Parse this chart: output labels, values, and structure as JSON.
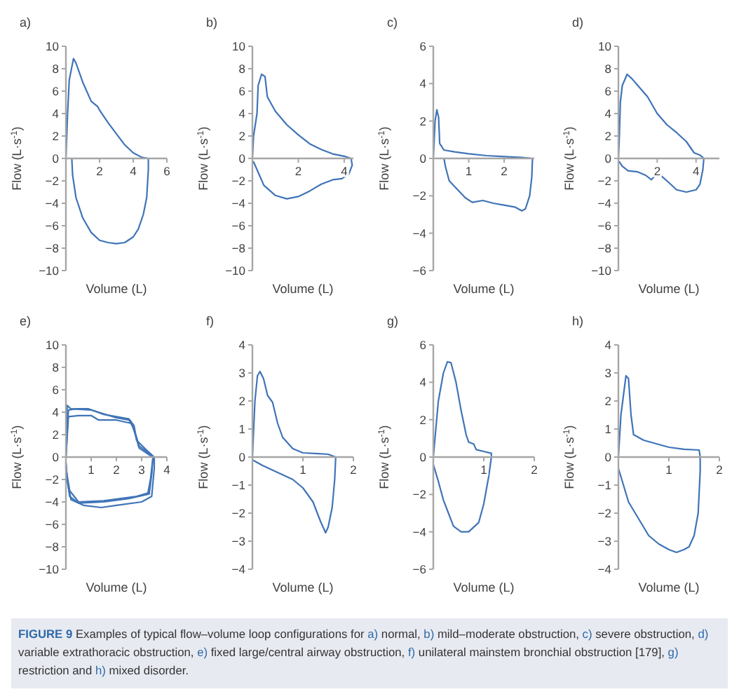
{
  "chart_data": [
    {
      "type": "line",
      "title": "a)",
      "xlabel": "Volume (L)",
      "ylabel": "Flow (L·s$^{-1}$)",
      "xlim": [
        0,
        6
      ],
      "ylim": [
        -10,
        10
      ],
      "xticks": [
        2,
        4,
        6
      ],
      "yticks": [
        {
          "value": -10,
          "label": "−10"
        },
        {
          "value": -8,
          "label": "−8"
        },
        {
          "value": -6,
          "label": "−6"
        },
        {
          "value": -4,
          "label": "−4"
        },
        {
          "value": -2,
          "label": "−2"
        },
        0,
        2,
        4,
        6,
        8,
        10
      ],
      "series": [
        {
          "color": "#3f74b8",
          "x": [
            0,
            0.1,
            0.2,
            0.45,
            0.6,
            1,
            1.5,
            1.9,
            2,
            2.5,
            3,
            3.5,
            4,
            4.5,
            4.9,
            4.9,
            4.8,
            4.6,
            4.3,
            4,
            3.5,
            3,
            2.5,
            2,
            1.5,
            1,
            0.6,
            0.4,
            0.35
          ],
          "values": [
            0,
            4,
            7,
            8.9,
            8.5,
            6.8,
            5.1,
            4.6,
            4.3,
            3.2,
            2.2,
            1.2,
            0.5,
            0.1,
            0,
            -1,
            -3.5,
            -5,
            -6.3,
            -7,
            -7.5,
            -7.6,
            -7.5,
            -7.3,
            -6.6,
            -5.3,
            -3.5,
            -1.5,
            0
          ]
        }
      ]
    },
    {
      "type": "line",
      "title": "b)",
      "xlabel": "Volume (L)",
      "ylabel": "Flow (L·s$^{-1}$)",
      "xlim": [
        0,
        4.4
      ],
      "ylim": [
        -10,
        10
      ],
      "xticks": [
        2,
        4
      ],
      "yticks": [
        {
          "value": -10,
          "label": "−10"
        },
        {
          "value": -8,
          "label": "−8"
        },
        {
          "value": -6,
          "label": "−6"
        },
        {
          "value": -4,
          "label": "−4"
        },
        {
          "value": -2,
          "label": "−2"
        },
        0,
        2,
        4,
        6,
        8,
        10
      ],
      "series": [
        {
          "color": "#3f74b8",
          "x": [
            0,
            0.05,
            0.2,
            0.25,
            0.4,
            0.55,
            0.65,
            1,
            1.5,
            2,
            2.5,
            3,
            3.5,
            4,
            4.3,
            4.35,
            4.2,
            3.9,
            3.5,
            3,
            2.5,
            2,
            1.5,
            1,
            0.5,
            0.2,
            0.05
          ],
          "values": [
            0,
            2,
            4,
            6.5,
            7.5,
            7.3,
            5.5,
            4.2,
            3,
            2.1,
            1.3,
            0.8,
            0.4,
            0.2,
            0,
            -0.6,
            -1.4,
            -1.8,
            -1.9,
            -2.3,
            -2.9,
            -3.4,
            -3.6,
            -3.3,
            -2.4,
            -1,
            -0.3
          ]
        }
      ]
    },
    {
      "type": "line",
      "title": "c)",
      "xlabel": "Volume (L)",
      "ylabel": "Flow (L·s$^{-1}$)",
      "xlim": [
        0,
        2.85
      ],
      "ylim": [
        -6,
        6
      ],
      "xticks": [
        1,
        2
      ],
      "yticks": [
        {
          "value": -6,
          "label": "−6"
        },
        {
          "value": -4,
          "label": "−4"
        },
        {
          "value": -2,
          "label": "−2"
        },
        0,
        2,
        4,
        6
      ],
      "series": [
        {
          "color": "#3f74b8",
          "x": [
            0,
            0.05,
            0.1,
            0.15,
            0.18,
            0.3,
            0.6,
            1,
            1.5,
            2,
            2.5,
            2.8,
            2.78,
            2.72,
            2.6,
            2.5,
            2.3,
            2,
            1.7,
            1.4,
            1.1,
            0.9,
            0.6,
            0.45,
            0.35,
            0.3
          ],
          "values": [
            0,
            2,
            2.6,
            2.2,
            0.8,
            0.45,
            0.35,
            0.25,
            0.15,
            0.1,
            0.05,
            0,
            -1,
            -2,
            -2.7,
            -2.8,
            -2.6,
            -2.5,
            -2.4,
            -2.25,
            -2.35,
            -2.1,
            -1.5,
            -1.2,
            -0.5,
            0
          ]
        }
      ]
    },
    {
      "type": "line",
      "title": "d)",
      "xlabel": "Volume (L)",
      "ylabel": "Flow (L·s$^{-1}$)",
      "xlim": [
        0,
        5.2
      ],
      "ylim": [
        -10,
        10
      ],
      "xticks": [
        2,
        4
      ],
      "yticks": [
        {
          "value": -10,
          "label": "−10"
        },
        {
          "value": -8,
          "label": "−8"
        },
        {
          "value": -6,
          "label": "−6"
        },
        {
          "value": -4,
          "label": "−4"
        },
        {
          "value": -2,
          "label": "−2"
        },
        0,
        2,
        4,
        6,
        8,
        10
      ],
      "series": [
        {
          "color": "#3f74b8",
          "x": [
            0,
            0.05,
            0.1,
            0.2,
            0.45,
            0.7,
            1,
            1.5,
            2,
            2.5,
            3,
            3.5,
            3.9,
            4.2,
            4.4,
            4.35,
            4.2,
            4,
            3.5,
            3,
            2.5,
            2.1,
            2,
            1.85,
            1.7,
            1.4,
            1,
            0.5,
            0.2,
            0.05
          ],
          "values": [
            0,
            2,
            5,
            6.5,
            7.5,
            7.1,
            6.5,
            5.5,
            4,
            3,
            2.3,
            1.5,
            0.5,
            0.3,
            0,
            -1,
            -2.3,
            -2.8,
            -3,
            -2.8,
            -2,
            -1.4,
            -1.2,
            -1.6,
            -1.9,
            -1.5,
            -1.2,
            -1.1,
            -0.7,
            -0.3
          ]
        }
      ]
    },
    {
      "type": "line",
      "title": "e)",
      "xlabel": "Volume (L)",
      "ylabel": "Flow (L·s$^{-1}$)",
      "xlim": [
        0,
        4
      ],
      "ylim": [
        -10,
        10
      ],
      "xticks": [
        1,
        2,
        3,
        4
      ],
      "yticks": [
        {
          "value": -10,
          "label": "−10"
        },
        {
          "value": -8,
          "label": "−8"
        },
        {
          "value": -6,
          "label": "−6"
        },
        {
          "value": -4,
          "label": "−4"
        },
        {
          "value": -2,
          "label": "−2"
        },
        0,
        2,
        4,
        6,
        8,
        10
      ],
      "series": [
        {
          "color": "#3f74b8",
          "x": [
            0,
            0.05,
            0.2,
            1,
            2,
            2.5,
            2.7,
            2.9,
            3.3,
            3.45,
            3.4,
            3.3,
            2.5,
            1.5,
            0.5,
            0.15,
            0.05,
            0
          ],
          "values": [
            0,
            4.6,
            4.3,
            4.2,
            3.5,
            3.3,
            2.5,
            1,
            0.3,
            0,
            -1.5,
            -3.3,
            -3.7,
            -4,
            -4.1,
            -3.5,
            -2,
            -0.5
          ]
        },
        {
          "color": "#3f74b8",
          "x": [
            0,
            0.1,
            0.4,
            0.9,
            1.5,
            2.5,
            2.7,
            2.8,
            3.2,
            3.5,
            3.5,
            3.4,
            3,
            2,
            1.4,
            0.7,
            0.2,
            0.05,
            0
          ],
          "values": [
            0,
            4.2,
            4.3,
            4.3,
            3.8,
            3.4,
            2.8,
            1.5,
            0.6,
            0,
            -1,
            -3.5,
            -4,
            -4.3,
            -4.5,
            -4.3,
            -3.8,
            -2,
            -0.5
          ]
        },
        {
          "color": "#3f74b8",
          "x": [
            0,
            0.1,
            0.5,
            1,
            1.3,
            2,
            2.6,
            2.75,
            2.9,
            3.3,
            3.45,
            3.35,
            3.25,
            2.8,
            1.5,
            0.5,
            0.15,
            0,
            0
          ],
          "values": [
            0,
            3.6,
            3.7,
            3.7,
            3.3,
            3.3,
            3,
            2,
            0.8,
            0.2,
            0,
            -2,
            -3.2,
            -3.5,
            -3.9,
            -4,
            -3,
            -1,
            -0.3
          ]
        }
      ]
    },
    {
      "type": "line",
      "title": "f)",
      "xlabel": "Volume (L)",
      "ylabel": "Flow (L·s$^{-1}$)",
      "xlim": [
        0,
        2
      ],
      "ylim": [
        -4,
        4
      ],
      "xticks": [
        1,
        2
      ],
      "yticks": [
        {
          "value": -4,
          "label": "−4"
        },
        {
          "value": -3,
          "label": "−3"
        },
        {
          "value": -2,
          "label": "−2"
        },
        {
          "value": -1,
          "label": "−1"
        },
        0,
        1,
        2,
        3,
        4
      ],
      "series": [
        {
          "color": "#3f74b8",
          "x": [
            0,
            0.05,
            0.1,
            0.15,
            0.22,
            0.3,
            0.4,
            0.5,
            0.6,
            0.8,
            1,
            1.3,
            1.5,
            1.65,
            1.63,
            1.58,
            1.5,
            1.45,
            1.35,
            1.2,
            1,
            0.8,
            0.5,
            0.2,
            0
          ],
          "values": [
            0,
            2,
            2.9,
            3.05,
            2.8,
            2.2,
            1.95,
            1.2,
            0.7,
            0.3,
            0.15,
            0.12,
            0.1,
            0,
            -0.8,
            -1.8,
            -2.5,
            -2.7,
            -2.3,
            -1.6,
            -1.1,
            -0.8,
            -0.55,
            -0.3,
            -0.1
          ]
        }
      ]
    },
    {
      "type": "line",
      "title": "g)",
      "xlabel": "Volume (L)",
      "ylabel": "Flow (L·s$^{-1}$)",
      "xlim": [
        0,
        2
      ],
      "ylim": [
        -6,
        6
      ],
      "xticks": [
        1,
        2
      ],
      "yticks": [
        {
          "value": -6,
          "label": "−6"
        },
        {
          "value": -4,
          "label": "−4"
        },
        {
          "value": -2,
          "label": "−2"
        },
        0,
        2,
        4,
        6
      ],
      "series": [
        {
          "color": "#3f74b8",
          "x": [
            0,
            0.05,
            0.1,
            0.2,
            0.28,
            0.35,
            0.45,
            0.55,
            0.65,
            0.7,
            0.8,
            0.85,
            1,
            1.15,
            1.15,
            1.1,
            1,
            0.9,
            0.7,
            0.55,
            0.4,
            0.3,
            0.2,
            0.1,
            0
          ],
          "values": [
            0,
            1.5,
            3,
            4.5,
            5.1,
            5.05,
            4,
            2.5,
            1.2,
            0.8,
            0.7,
            0.4,
            0.3,
            0.2,
            0,
            -1,
            -2.5,
            -3.5,
            -4,
            -4,
            -3.7,
            -3,
            -2.3,
            -1.3,
            -0.4
          ]
        }
      ]
    },
    {
      "type": "line",
      "title": "h)",
      "xlabel": "Volume (L)",
      "ylabel": "Flow (L·s$^{-1}$)",
      "xlim": [
        0,
        2
      ],
      "ylim": [
        -4,
        4
      ],
      "xticks": [
        1,
        2
      ],
      "yticks": [
        {
          "value": -4,
          "label": "−4"
        },
        {
          "value": -3,
          "label": "−3"
        },
        {
          "value": -2,
          "label": "−2"
        },
        {
          "value": -1,
          "label": "−1"
        },
        0,
        1,
        2,
        3,
        4
      ],
      "annotations": [
        "FIGURE 9 Examples of typical flow–volume loop configurations for a) normal, b) mild–moderate obstruction, c) severe obstruction, d) variable extrathoracic obstruction, e) fixed large/central airway obstruction, f) unilateral mainstem bronchial obstruction [179], g) restriction and h) mixed disorder."
      ],
      "series": [
        {
          "color": "#3f74b8",
          "x": [
            0,
            0.05,
            0.1,
            0.15,
            0.2,
            0.25,
            0.3,
            0.5,
            0.8,
            1,
            1.3,
            1.6,
            1.62,
            1.62,
            1.58,
            1.5,
            1.4,
            1.3,
            1.15,
            1,
            0.8,
            0.6,
            0.4,
            0.2,
            0.1,
            0
          ],
          "values": [
            0,
            1.5,
            2.2,
            2.9,
            2.8,
            1.5,
            0.8,
            0.6,
            0.45,
            0.35,
            0.28,
            0.25,
            0,
            -0.5,
            -2,
            -2.8,
            -3.2,
            -3.3,
            -3.4,
            -3.3,
            -3.1,
            -2.8,
            -2.2,
            -1.6,
            -1,
            -0.4
          ]
        }
      ]
    }
  ]
}
